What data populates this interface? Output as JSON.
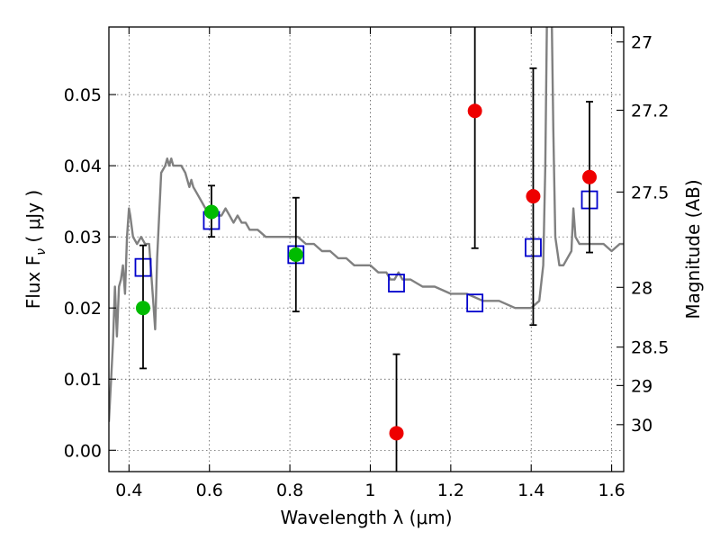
{
  "chart_data": {
    "type": "scatter",
    "xlabel": "Wavelength  λ (μm)",
    "ylabel": "Flux  F",
    "ylabel_sub": "ν",
    "ylabel_unit": " ( μJy )",
    "y2label": "Magnitude (AB)",
    "xlim": [
      0.35,
      1.63
    ],
    "ylim": [
      -0.003,
      0.0595
    ],
    "grid": true,
    "x_ticks": [
      0.4,
      0.6,
      0.8,
      1.0,
      1.2,
      1.4,
      1.6
    ],
    "x_tick_labels": [
      "0.4",
      "0.6",
      "0.8",
      "1",
      "1.2",
      "1.4",
      "1.6"
    ],
    "y_ticks": [
      0.0,
      0.01,
      0.02,
      0.03,
      0.04,
      0.05
    ],
    "y_tick_labels": [
      "0.00",
      "0.01",
      "0.02",
      "0.03",
      "0.04",
      "0.05"
    ],
    "y2_ticks": [
      {
        "label": "27",
        "flux": 0.0574
      },
      {
        "label": "27.2",
        "flux": 0.0478
      },
      {
        "label": "27.5",
        "flux": 0.0363
      },
      {
        "label": "28",
        "flux": 0.0229
      },
      {
        "label": "28.5",
        "flux": 0.0145
      },
      {
        "label": "29",
        "flux": 0.0091
      },
      {
        "label": "30",
        "flux": 0.0036
      }
    ],
    "colors": {
      "sed": "#808080",
      "model_box": "#0000cc",
      "detected": "#00bb00",
      "nir": "#ee0000",
      "errorbar": "#000000"
    },
    "sed_model": [
      [
        0.35,
        0.004
      ],
      [
        0.36,
        0.015
      ],
      [
        0.365,
        0.023
      ],
      [
        0.37,
        0.016
      ],
      [
        0.375,
        0.023
      ],
      [
        0.38,
        0.024
      ],
      [
        0.385,
        0.026
      ],
      [
        0.39,
        0.022
      ],
      [
        0.395,
        0.03
      ],
      [
        0.4,
        0.034
      ],
      [
        0.403,
        0.033
      ],
      [
        0.41,
        0.03
      ],
      [
        0.42,
        0.029
      ],
      [
        0.43,
        0.03
      ],
      [
        0.44,
        0.029
      ],
      [
        0.45,
        0.029
      ],
      [
        0.46,
        0.021
      ],
      [
        0.465,
        0.017
      ],
      [
        0.47,
        0.027
      ],
      [
        0.48,
        0.039
      ],
      [
        0.49,
        0.04
      ],
      [
        0.495,
        0.041
      ],
      [
        0.5,
        0.04
      ],
      [
        0.505,
        0.041
      ],
      [
        0.51,
        0.04
      ],
      [
        0.52,
        0.04
      ],
      [
        0.53,
        0.04
      ],
      [
        0.54,
        0.039
      ],
      [
        0.55,
        0.037
      ],
      [
        0.555,
        0.038
      ],
      [
        0.56,
        0.037
      ],
      [
        0.57,
        0.036
      ],
      [
        0.58,
        0.035
      ],
      [
        0.59,
        0.034
      ],
      [
        0.6,
        0.034
      ],
      [
        0.61,
        0.034
      ],
      [
        0.62,
        0.033
      ],
      [
        0.63,
        0.033
      ],
      [
        0.64,
        0.034
      ],
      [
        0.65,
        0.033
      ],
      [
        0.66,
        0.032
      ],
      [
        0.67,
        0.033
      ],
      [
        0.68,
        0.032
      ],
      [
        0.69,
        0.032
      ],
      [
        0.7,
        0.031
      ],
      [
        0.72,
        0.031
      ],
      [
        0.74,
        0.03
      ],
      [
        0.76,
        0.03
      ],
      [
        0.78,
        0.03
      ],
      [
        0.8,
        0.03
      ],
      [
        0.82,
        0.03
      ],
      [
        0.84,
        0.029
      ],
      [
        0.86,
        0.029
      ],
      [
        0.88,
        0.028
      ],
      [
        0.9,
        0.028
      ],
      [
        0.92,
        0.027
      ],
      [
        0.94,
        0.027
      ],
      [
        0.96,
        0.026
      ],
      [
        0.98,
        0.026
      ],
      [
        1.0,
        0.026
      ],
      [
        1.02,
        0.025
      ],
      [
        1.04,
        0.025
      ],
      [
        1.05,
        0.024
      ],
      [
        1.06,
        0.024
      ],
      [
        1.07,
        0.025
      ],
      [
        1.08,
        0.024
      ],
      [
        1.1,
        0.024
      ],
      [
        1.13,
        0.023
      ],
      [
        1.16,
        0.023
      ],
      [
        1.2,
        0.022
      ],
      [
        1.24,
        0.022
      ],
      [
        1.28,
        0.021
      ],
      [
        1.32,
        0.021
      ],
      [
        1.36,
        0.02
      ],
      [
        1.38,
        0.02
      ],
      [
        1.4,
        0.02
      ],
      [
        1.42,
        0.021
      ],
      [
        1.43,
        0.026
      ],
      [
        1.435,
        0.04
      ],
      [
        1.44,
        0.065
      ],
      [
        1.45,
        0.065
      ],
      [
        1.455,
        0.045
      ],
      [
        1.46,
        0.03
      ],
      [
        1.47,
        0.026
      ],
      [
        1.48,
        0.026
      ],
      [
        1.49,
        0.027
      ],
      [
        1.5,
        0.028
      ],
      [
        1.505,
        0.034
      ],
      [
        1.51,
        0.03
      ],
      [
        1.52,
        0.029
      ],
      [
        1.54,
        0.029
      ],
      [
        1.56,
        0.029
      ],
      [
        1.58,
        0.029
      ],
      [
        1.6,
        0.028
      ],
      [
        1.62,
        0.029
      ],
      [
        1.63,
        0.029
      ]
    ],
    "model_boxes": [
      {
        "x": 0.435,
        "y": 0.0257
      },
      {
        "x": 0.605,
        "y": 0.0323
      },
      {
        "x": 0.815,
        "y": 0.0275
      },
      {
        "x": 1.065,
        "y": 0.0235
      },
      {
        "x": 1.26,
        "y": 0.0207
      },
      {
        "x": 1.405,
        "y": 0.0285
      },
      {
        "x": 1.545,
        "y": 0.0352
      }
    ],
    "detections": [
      {
        "x": 0.435,
        "y": 0.02,
        "err_low": 0.0115,
        "err_high": 0.0288,
        "band": "optical"
      },
      {
        "x": 0.605,
        "y": 0.0335,
        "err_low": 0.03,
        "err_high": 0.0372,
        "band": "optical"
      },
      {
        "x": 0.815,
        "y": 0.0275,
        "err_low": 0.0195,
        "err_high": 0.0355,
        "band": "optical"
      },
      {
        "x": 1.065,
        "y": 0.0024,
        "err_low": -0.005,
        "err_high": 0.0135,
        "band": "nir"
      },
      {
        "x": 1.26,
        "y": 0.0477,
        "err_low": 0.0284,
        "err_high": 0.065,
        "band": "nir"
      },
      {
        "x": 1.405,
        "y": 0.0357,
        "err_low": 0.0176,
        "err_high": 0.0537,
        "band": "nir"
      },
      {
        "x": 1.545,
        "y": 0.0384,
        "err_low": 0.0278,
        "err_high": 0.049,
        "band": "nir"
      }
    ]
  }
}
